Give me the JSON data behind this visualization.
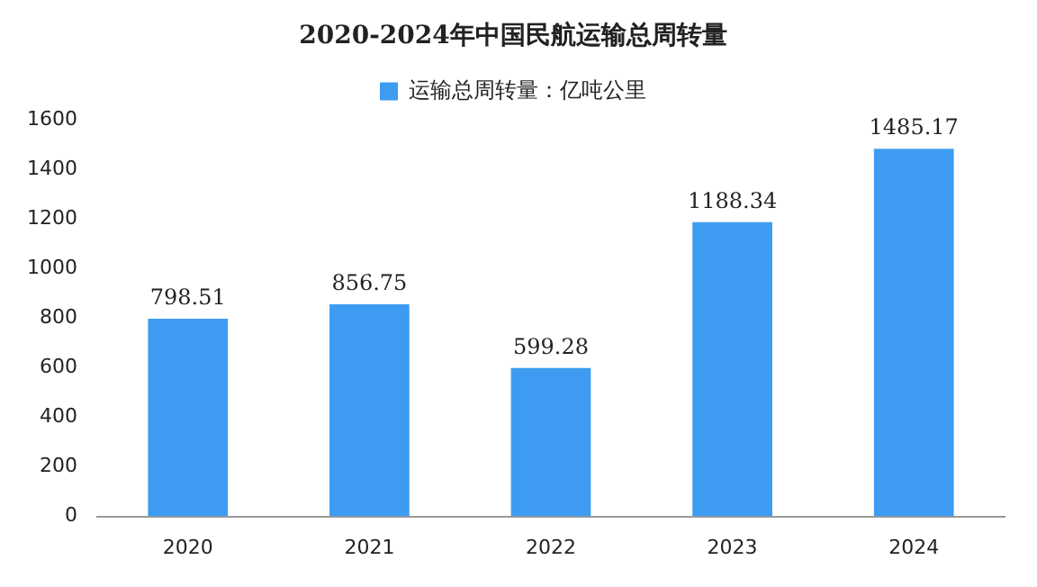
{
  "chart_data": {
    "type": "bar",
    "title": "2020-2024年中国民航运输总周转量",
    "categories": [
      "2020",
      "2021",
      "2022",
      "2023",
      "2024"
    ],
    "series": [
      {
        "name": "运输总周转量：亿吨公里",
        "color": "#3d9cf2",
        "values": [
          798.51,
          856.75,
          599.28,
          1188.34,
          1485.17
        ]
      }
    ],
    "ylim": [
      0,
      1600
    ],
    "yticks": [
      0,
      200,
      400,
      600,
      800,
      1000,
      1200,
      1400,
      1600
    ],
    "grid": false,
    "legend": "top",
    "data_labels": true
  }
}
